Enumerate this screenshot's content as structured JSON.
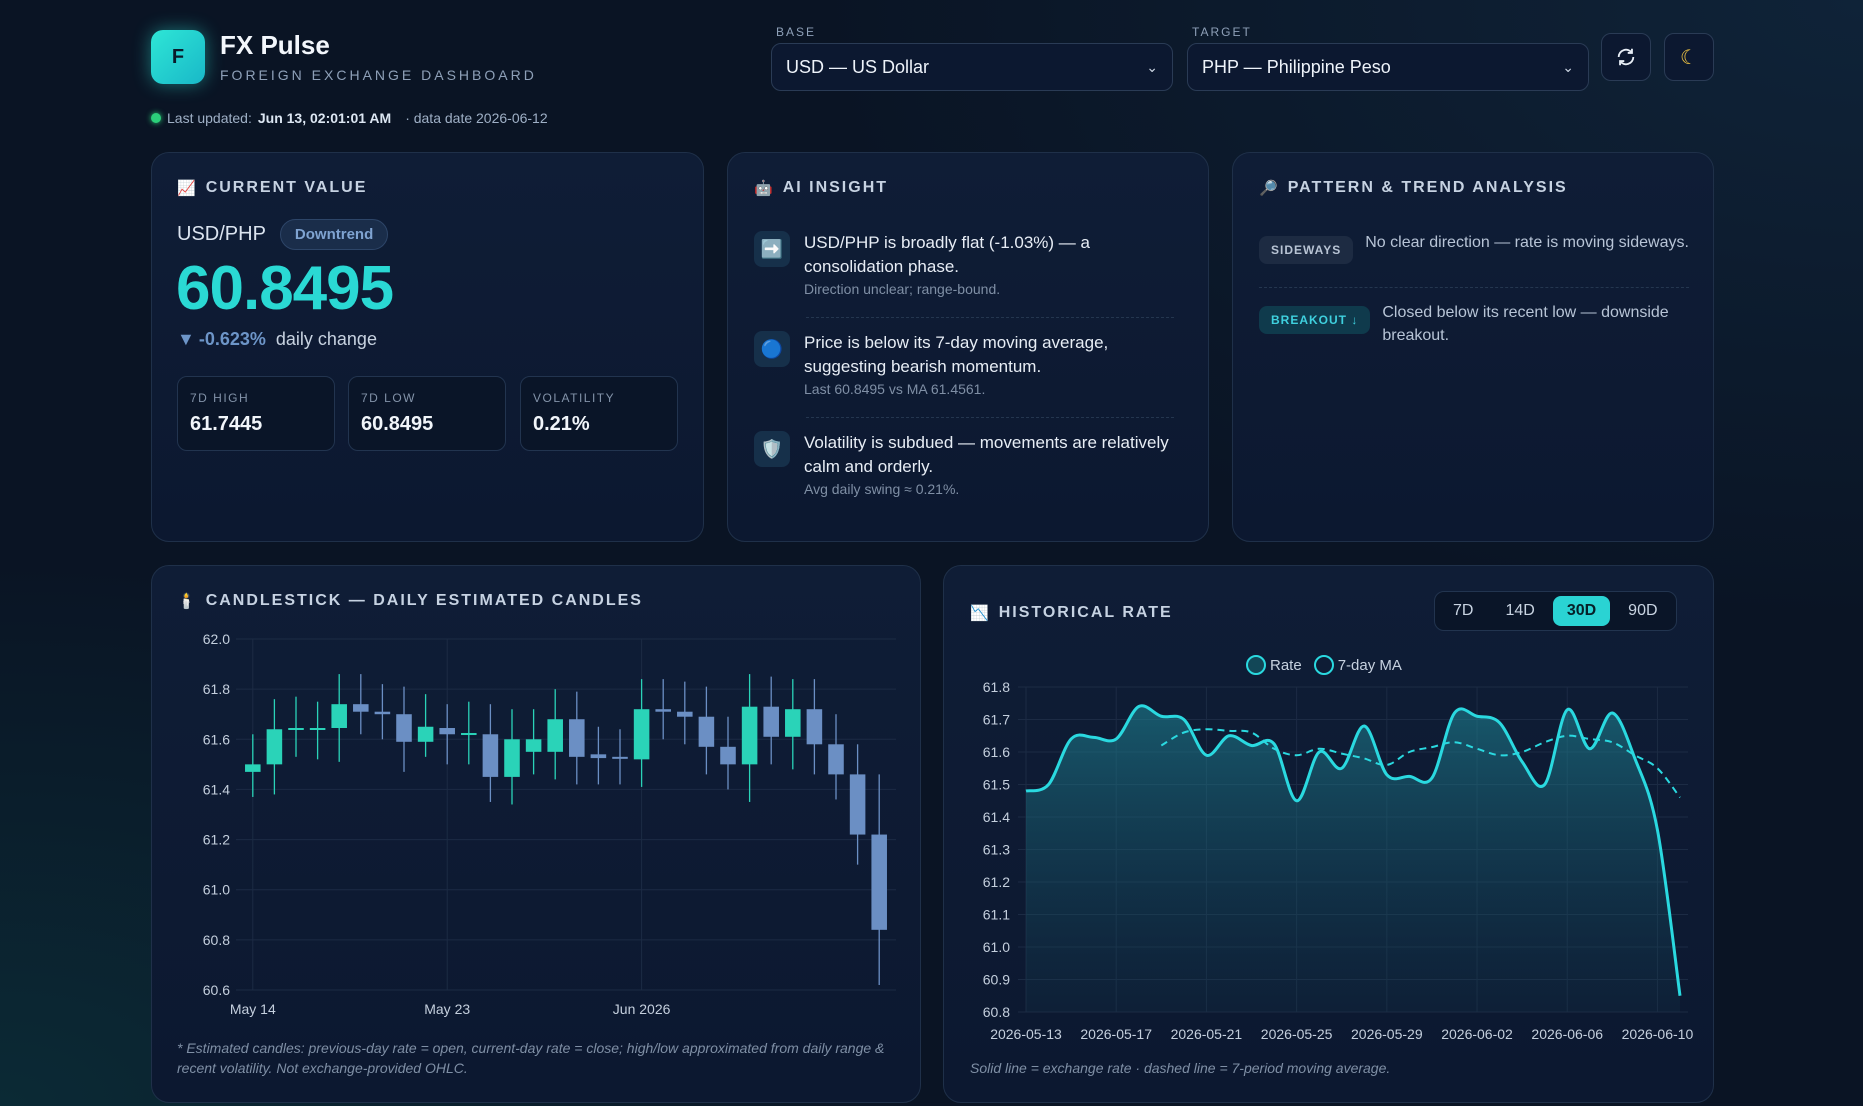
{
  "header": {
    "logo_letter": "F",
    "title": "FX Pulse",
    "subtitle": "FOREIGN EXCHANGE DASHBOARD",
    "updated_label": "Last updated:",
    "updated_time": "Jun 13, 02:01:01 AM",
    "data_date": "· data date 2026-06-12",
    "base_label": "BASE",
    "base_value": "USD — US Dollar",
    "target_label": "TARGET",
    "target_value": "PHP — Philippine Peso",
    "refresh_icon": "refresh-icon",
    "theme_icon": "moon-icon",
    "colors": {
      "accent": "#2ad9d4",
      "status_dot": "#2bd07a"
    }
  },
  "current": {
    "title": "CURRENT VALUE",
    "pair": "USD/PHP",
    "trend_badge": "Downtrend",
    "value": "60.8495",
    "change": "-0.623%",
    "change_label": "daily change",
    "stats": [
      {
        "label": "7D HIGH",
        "value": "61.7445"
      },
      {
        "label": "7D LOW",
        "value": "60.8495"
      },
      {
        "label": "VOLATILITY",
        "value": "0.21%"
      }
    ]
  },
  "insight": {
    "title": "AI INSIGHT",
    "items": [
      {
        "icon": "➡️",
        "main": "USD/PHP is broadly flat (-1.03%) — a consolidation phase.",
        "sub": "Direction unclear; range-bound."
      },
      {
        "icon": "🔵",
        "main": "Price is below its 7-day moving average, suggesting bearish momentum.",
        "sub": "Last 60.8495 vs MA 61.4561."
      },
      {
        "icon": "🛡️",
        "main": "Volatility is subdued — movements are relatively calm and orderly.",
        "sub": "Avg daily swing ≈ 0.21%."
      }
    ]
  },
  "patterns": {
    "title": "PATTERN & TREND ANALYSIS",
    "items": [
      {
        "tag": "SIDEWAYS",
        "text": "No clear direction — rate is moving sideways."
      },
      {
        "tag": "BREAKOUT ↓",
        "text": "Closed below its recent low — downside breakout."
      }
    ]
  },
  "candle_card": {
    "title": "CANDLESTICK — DAILY ESTIMATED CANDLES",
    "note": "* Estimated candles: previous-day rate = open, current-day rate = close; high/low approximated from daily range & recent volatility. Not exchange-provided OHLC."
  },
  "history_card": {
    "title": "HISTORICAL RATE",
    "tabs": [
      "7D",
      "14D",
      "30D",
      "90D"
    ],
    "active_tab": "30D",
    "legend": [
      "Rate",
      "7-day MA"
    ],
    "note": "Solid line = exchange rate · dashed line = 7-period moving average."
  },
  "chart_data": [
    {
      "type": "candlestick",
      "title": "CANDLESTICK — DAILY ESTIMATED CANDLES",
      "ylim": [
        60.6,
        62.0
      ],
      "y_ticks": [
        "62.0",
        "61.8",
        "61.6",
        "61.4",
        "61.2",
        "61.0",
        "60.8",
        "60.6"
      ],
      "x_ticks": [
        {
          "label": "May 14",
          "index": 0
        },
        {
          "label": "May 23",
          "index": 9
        },
        {
          "label": "Jun 2026",
          "index": 18
        }
      ],
      "colors": {
        "up": "#2ad3b8",
        "down": "#6b8fc4"
      },
      "candles": [
        {
          "o": 61.47,
          "c": 61.5,
          "h": 61.62,
          "l": 61.37
        },
        {
          "o": 61.5,
          "c": 61.64,
          "h": 61.76,
          "l": 61.38
        },
        {
          "o": 61.64,
          "c": 61.645,
          "h": 61.77,
          "l": 61.53
        },
        {
          "o": 61.64,
          "c": 61.645,
          "h": 61.75,
          "l": 61.52
        },
        {
          "o": 61.645,
          "c": 61.74,
          "h": 61.86,
          "l": 61.51
        },
        {
          "o": 61.74,
          "c": 61.71,
          "h": 61.86,
          "l": 61.62
        },
        {
          "o": 61.71,
          "c": 61.7,
          "h": 61.82,
          "l": 61.6
        },
        {
          "o": 61.7,
          "c": 61.59,
          "h": 61.81,
          "l": 61.47
        },
        {
          "o": 61.59,
          "c": 61.65,
          "h": 61.78,
          "l": 61.53
        },
        {
          "o": 61.645,
          "c": 61.62,
          "h": 61.74,
          "l": 61.5
        },
        {
          "o": 61.62,
          "c": 61.625,
          "h": 61.75,
          "l": 61.5
        },
        {
          "o": 61.62,
          "c": 61.45,
          "h": 61.74,
          "l": 61.35
        },
        {
          "o": 61.45,
          "c": 61.6,
          "h": 61.72,
          "l": 61.34
        },
        {
          "o": 61.55,
          "c": 61.6,
          "h": 61.72,
          "l": 61.46
        },
        {
          "o": 61.55,
          "c": 61.68,
          "h": 61.8,
          "l": 61.44
        },
        {
          "o": 61.68,
          "c": 61.53,
          "h": 61.79,
          "l": 61.42
        },
        {
          "o": 61.54,
          "c": 61.525,
          "h": 61.65,
          "l": 61.42
        },
        {
          "o": 61.53,
          "c": 61.525,
          "h": 61.64,
          "l": 61.42
        },
        {
          "o": 61.52,
          "c": 61.72,
          "h": 61.84,
          "l": 61.41
        },
        {
          "o": 61.72,
          "c": 61.71,
          "h": 61.84,
          "l": 61.6
        },
        {
          "o": 61.71,
          "c": 61.69,
          "h": 61.83,
          "l": 61.58
        },
        {
          "o": 61.69,
          "c": 61.57,
          "h": 61.81,
          "l": 61.46
        },
        {
          "o": 61.57,
          "c": 61.5,
          "h": 61.69,
          "l": 61.4
        },
        {
          "o": 61.5,
          "c": 61.73,
          "h": 61.86,
          "l": 61.35
        },
        {
          "o": 61.73,
          "c": 61.61,
          "h": 61.85,
          "l": 61.5
        },
        {
          "o": 61.61,
          "c": 61.72,
          "h": 61.84,
          "l": 61.48
        },
        {
          "o": 61.72,
          "c": 61.58,
          "h": 61.84,
          "l": 61.46
        },
        {
          "o": 61.58,
          "c": 61.46,
          "h": 61.7,
          "l": 61.36
        },
        {
          "o": 61.46,
          "c": 61.22,
          "h": 61.58,
          "l": 61.1
        },
        {
          "o": 61.22,
          "c": 60.84,
          "h": 61.46,
          "l": 60.62
        }
      ]
    },
    {
      "type": "line",
      "title": "HISTORICAL RATE",
      "ylim": [
        60.8,
        61.8
      ],
      "y_ticks": [
        "61.8",
        "61.7",
        "61.6",
        "61.5",
        "61.4",
        "61.3",
        "61.2",
        "61.1",
        "61.0",
        "60.9",
        "60.8"
      ],
      "x_ticks": [
        "2026-05-13",
        "2026-05-17",
        "2026-05-21",
        "2026-05-25",
        "2026-05-29",
        "2026-06-02",
        "2026-06-06",
        "2026-06-10"
      ],
      "series": [
        {
          "name": "Rate",
          "style": "solid",
          "color": "#2ad9e0",
          "values": [
            61.48,
            61.5,
            61.64,
            61.645,
            61.64,
            61.74,
            61.71,
            61.7,
            61.59,
            61.65,
            61.62,
            61.625,
            61.45,
            61.6,
            61.55,
            61.68,
            61.53,
            61.525,
            61.52,
            61.72,
            61.71,
            61.69,
            61.57,
            61.5,
            61.73,
            61.61,
            61.72,
            61.58,
            61.36,
            60.85
          ]
        },
        {
          "name": "7-day MA",
          "style": "dashed",
          "color": "#2ad9e0",
          "values": [
            null,
            null,
            null,
            null,
            null,
            null,
            61.62,
            61.66,
            61.67,
            61.665,
            61.66,
            61.61,
            61.59,
            61.61,
            61.595,
            61.58,
            61.56,
            61.6,
            61.615,
            61.63,
            61.61,
            61.59,
            61.6,
            61.63,
            61.65,
            61.64,
            61.63,
            61.59,
            61.55,
            61.46
          ]
        }
      ]
    }
  ]
}
